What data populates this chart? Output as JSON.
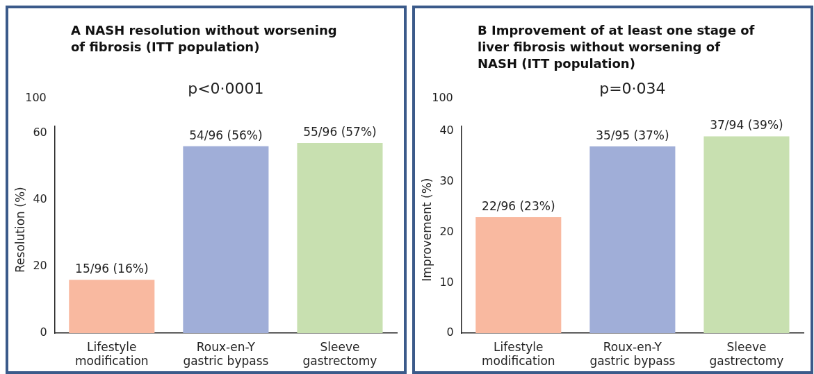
{
  "chart_data": [
    {
      "type": "bar",
      "title": "A  NASH resolution without worsening of fibrosis (ITT population)",
      "ylabel": "Resolution (%)",
      "categories": [
        "Lifestyle modification",
        "Roux-en-Y gastric bypass",
        "Sleeve gastrectomy"
      ],
      "values": [
        16,
        56,
        57
      ],
      "value_labels": [
        "15/96 (16%)",
        "54/96 (56%)",
        "55/96 (57%)"
      ],
      "colors": [
        "#f9b9a0",
        "#a0aed8",
        "#c8e0b0"
      ],
      "ylim": [
        0,
        62
      ],
      "yticks": [
        0,
        20,
        40,
        60
      ],
      "annotations": [
        "p<0·0001",
        "100"
      ],
      "grid": false,
      "legend": false
    },
    {
      "type": "bar",
      "title": "B  Improvement of at least one stage of liver fibrosis without worsening of NASH (ITT population)",
      "ylabel": "Improvement (%)",
      "categories": [
        "Lifestyle modification",
        "Roux-en-Y gastric bypass",
        "Sleeve gastrectomy"
      ],
      "values": [
        23,
        37,
        39
      ],
      "value_labels": [
        "22/96 (23%)",
        "35/95 (37%)",
        "37/94 (39%)"
      ],
      "colors": [
        "#f9b9a0",
        "#a0aed8",
        "#c8e0b0"
      ],
      "ylim": [
        0,
        41
      ],
      "yticks": [
        0,
        10,
        20,
        30,
        40
      ],
      "annotations": [
        "p=0·034",
        "100"
      ],
      "grid": false,
      "legend": false
    }
  ]
}
